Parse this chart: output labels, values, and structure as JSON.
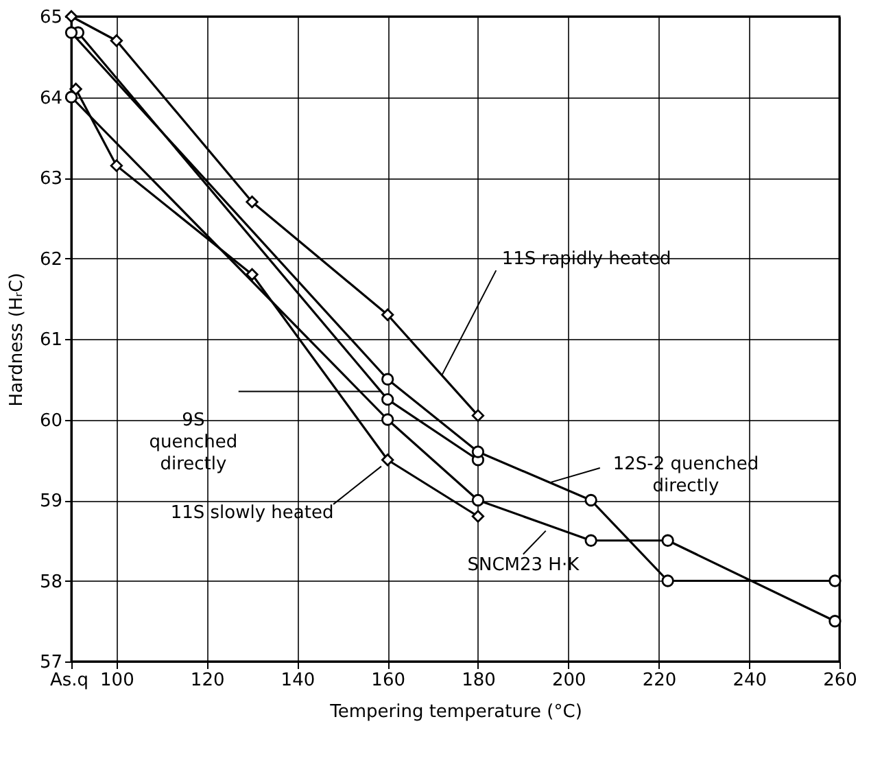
{
  "chart_data": {
    "type": "line",
    "xlabel": "Tempering temperature (°C)",
    "ylabel": "Hardness (HᵣC)",
    "xlim": [
      90,
      260
    ],
    "ylim": [
      57,
      65
    ],
    "xticks": [
      {
        "value": 90,
        "label": "As.q"
      },
      100,
      120,
      140,
      160,
      180,
      200,
      220,
      240,
      260
    ],
    "yticks": [
      57,
      58,
      59,
      60,
      61,
      62,
      63,
      64,
      65
    ],
    "grid": true,
    "line_style": "solid",
    "series": [
      {
        "name": "11S rapidly heated",
        "color": "#000000",
        "marker": "diamond",
        "x": [
          90,
          100,
          130,
          160,
          180
        ],
        "values": [
          65.0,
          64.7,
          62.7,
          61.3,
          60.05
        ]
      },
      {
        "name": "9S quenched directly",
        "color": "#000000",
        "marker": "circle",
        "x": [
          91.5,
          160,
          180
        ],
        "values": [
          64.8,
          60.25,
          59.5
        ]
      },
      {
        "name": "12S-2 quenched directly",
        "color": "#000000",
        "marker": "circle",
        "x": [
          90,
          160,
          180,
          205,
          222,
          259
        ],
        "values": [
          64.8,
          60.5,
          59.6,
          59.0,
          58.0,
          58.0
        ]
      },
      {
        "name": "SNCM23 H·K",
        "color": "#000000",
        "marker": "circle",
        "x": [
          90,
          160,
          180,
          205,
          222,
          259
        ],
        "values": [
          64.0,
          60.0,
          59.0,
          58.5,
          58.5,
          57.5
        ]
      },
      {
        "name": "11S slowly heated",
        "color": "#000000",
        "marker": "diamond",
        "x": [
          91,
          100,
          130,
          160,
          180
        ],
        "values": [
          64.1,
          63.15,
          61.8,
          59.5,
          58.8
        ]
      }
    ]
  }
}
